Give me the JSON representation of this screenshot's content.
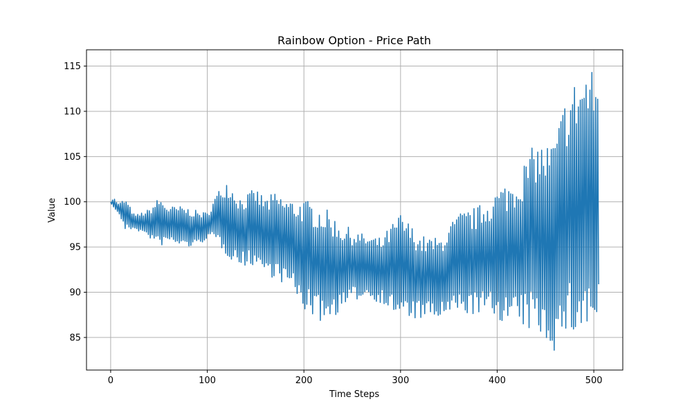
{
  "chart_data": {
    "type": "line",
    "title": "Rainbow Option - Price Path",
    "xlabel": "Time Steps",
    "ylabel": "Value",
    "xlim": [
      -25,
      530
    ],
    "ylim": [
      81.4,
      116.8
    ],
    "x_ticks": [
      0,
      100,
      200,
      300,
      400,
      500
    ],
    "y_ticks": [
      85,
      90,
      95,
      100,
      105,
      110,
      115
    ],
    "grid": true,
    "legend": "none",
    "series": [
      {
        "color": "#1f77b4",
        "x_start": 0,
        "x_end": 505,
        "envelope": [
          {
            "x": 0,
            "high": 100.0,
            "low": 100.0
          },
          {
            "x": 3,
            "high": 100.5,
            "low": 99.2
          },
          {
            "x": 8,
            "high": 99.8,
            "low": 98.8
          },
          {
            "x": 15,
            "high": 100.4,
            "low": 96.8
          },
          {
            "x": 25,
            "high": 98.5,
            "low": 97.0
          },
          {
            "x": 40,
            "high": 99.2,
            "low": 96.0
          },
          {
            "x": 50,
            "high": 100.5,
            "low": 95.0
          },
          {
            "x": 60,
            "high": 99.5,
            "low": 95.5
          },
          {
            "x": 75,
            "high": 99.5,
            "low": 95.0
          },
          {
            "x": 90,
            "high": 99.0,
            "low": 95.0
          },
          {
            "x": 100,
            "high": 98.8,
            "low": 96.0
          },
          {
            "x": 110,
            "high": 101.0,
            "low": 95.5
          },
          {
            "x": 120,
            "high": 102.5,
            "low": 94.0
          },
          {
            "x": 135,
            "high": 100.5,
            "low": 92.8
          },
          {
            "x": 150,
            "high": 101.5,
            "low": 93.0
          },
          {
            "x": 160,
            "high": 100.5,
            "low": 92.0
          },
          {
            "x": 170,
            "high": 101.0,
            "low": 91.5
          },
          {
            "x": 185,
            "high": 100.3,
            "low": 90.5
          },
          {
            "x": 200,
            "high": 100.3,
            "low": 88.0
          },
          {
            "x": 220,
            "high": 99.5,
            "low": 86.5
          },
          {
            "x": 240,
            "high": 97.5,
            "low": 88.0
          },
          {
            "x": 260,
            "high": 96.5,
            "low": 89.5
          },
          {
            "x": 280,
            "high": 96.0,
            "low": 88.8
          },
          {
            "x": 300,
            "high": 98.8,
            "low": 87.0
          },
          {
            "x": 320,
            "high": 96.3,
            "low": 87.0
          },
          {
            "x": 340,
            "high": 96.0,
            "low": 87.0
          },
          {
            "x": 360,
            "high": 98.8,
            "low": 87.5
          },
          {
            "x": 380,
            "high": 99.5,
            "low": 87.5
          },
          {
            "x": 400,
            "high": 101.5,
            "low": 87.0
          },
          {
            "x": 420,
            "high": 103.0,
            "low": 86.0
          },
          {
            "x": 440,
            "high": 106.7,
            "low": 85.5
          },
          {
            "x": 455,
            "high": 106.5,
            "low": 84.0
          },
          {
            "x": 462,
            "high": 108.0,
            "low": 83.0
          },
          {
            "x": 470,
            "high": 111.5,
            "low": 85.0
          },
          {
            "x": 480,
            "high": 113.5,
            "low": 85.0
          },
          {
            "x": 490,
            "high": 114.8,
            "low": 85.0
          },
          {
            "x": 495,
            "high": 115.0,
            "low": 85.5
          },
          {
            "x": 505,
            "high": 114.0,
            "low": 85.5
          }
        ]
      }
    ]
  }
}
